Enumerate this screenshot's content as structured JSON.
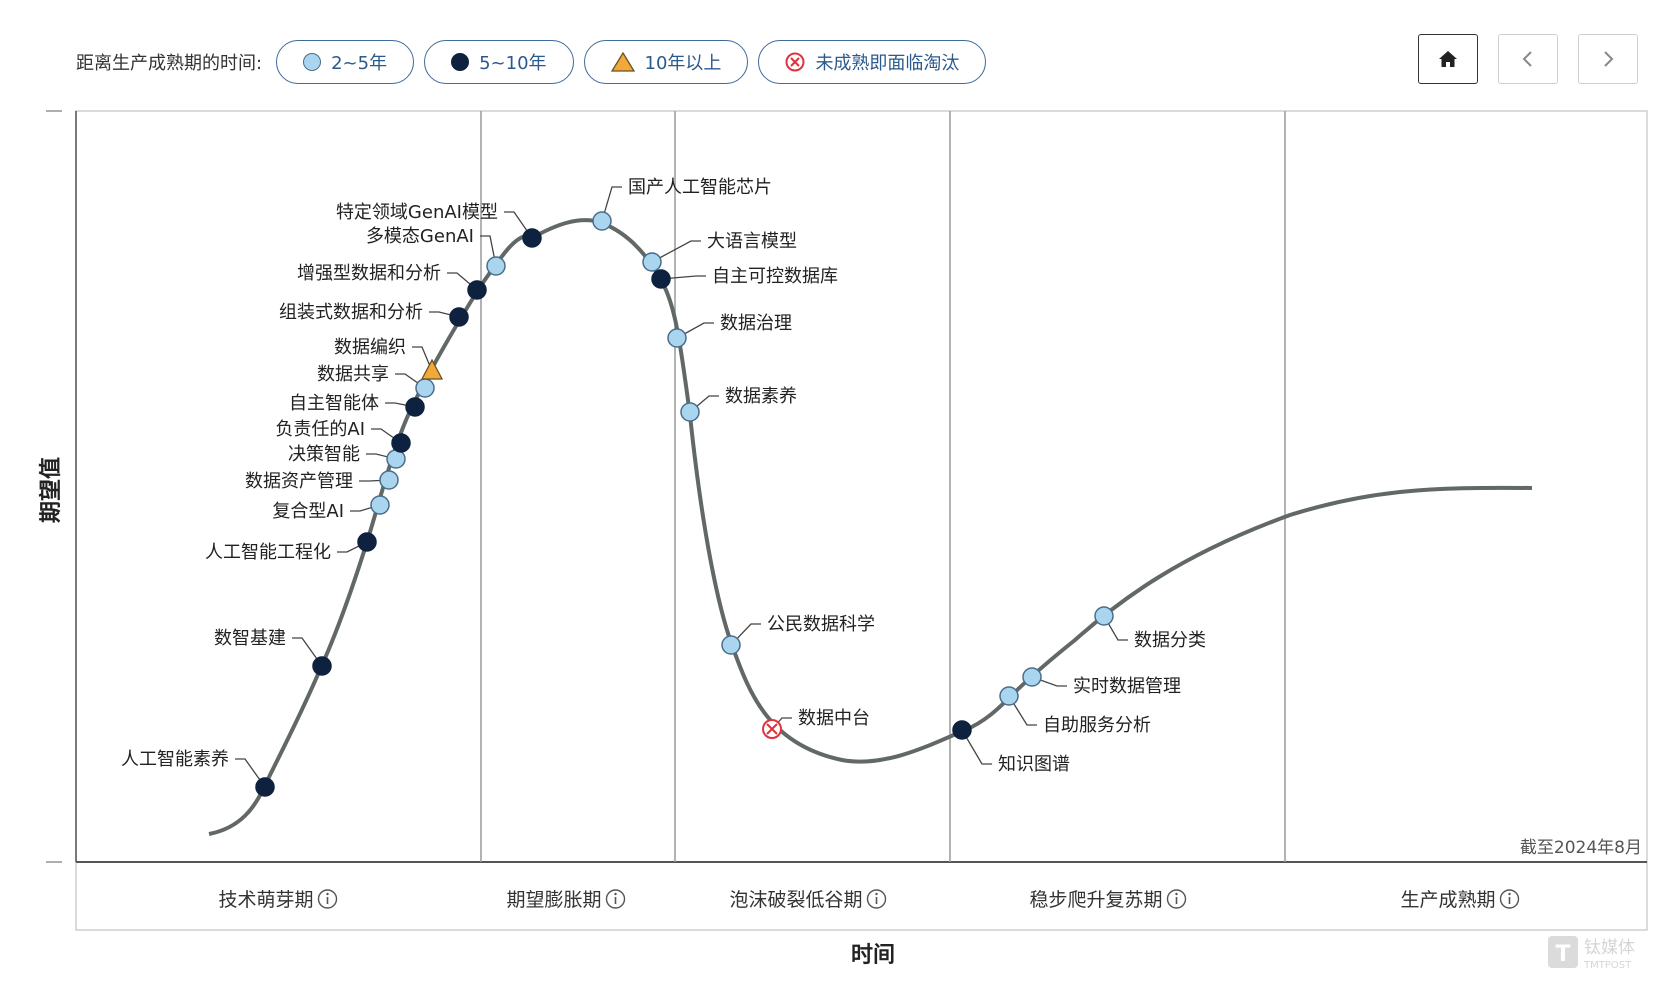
{
  "legend": {
    "title": "距离生产成熟期的时间:",
    "items": [
      {
        "label": "2~5年",
        "symbol": "light-circle"
      },
      {
        "label": "5~10年",
        "symbol": "dark-circle"
      },
      {
        "label": "10年以上",
        "symbol": "triangle"
      },
      {
        "label": "未成熟即面临淘汰",
        "symbol": "x-circle"
      }
    ]
  },
  "nav": {
    "home_icon": "home-icon",
    "prev_icon": "chevron-left-icon",
    "next_icon": "chevron-right-icon"
  },
  "colors": {
    "light": "#a9d6ee",
    "dark": "#0e2240",
    "triangle": "#f2a93b",
    "obsolete": "#e0323c",
    "curve": "#616865",
    "accent": "#3f6a9a"
  },
  "chart_data": {
    "type": "scatter",
    "ylabel": "期望值",
    "xlabel": "时间",
    "date_note": "截至2024年8月",
    "phases": [
      "技术萌芽期",
      "期望膨胀期",
      "泡沫破裂低谷期",
      "稳步爬升复苏期",
      "生产成熟期"
    ],
    "points": [
      {
        "label": "人工智能素养",
        "category": "5~10年"
      },
      {
        "label": "数智基建",
        "category": "5~10年"
      },
      {
        "label": "人工智能工程化",
        "category": "5~10年"
      },
      {
        "label": "复合型AI",
        "category": "2~5年"
      },
      {
        "label": "数据资产管理",
        "category": "2~5年"
      },
      {
        "label": "决策智能",
        "category": "2~5年"
      },
      {
        "label": "负责任的AI",
        "category": "5~10年"
      },
      {
        "label": "自主智能体",
        "category": "5~10年"
      },
      {
        "label": "数据共享",
        "category": "2~5年"
      },
      {
        "label": "数据编织",
        "category": "10年以上"
      },
      {
        "label": "组装式数据和分析",
        "category": "5~10年"
      },
      {
        "label": "增强型数据和分析",
        "category": "5~10年"
      },
      {
        "label": "多模态GenAI",
        "category": "2~5年"
      },
      {
        "label": "特定领域GenAI模型",
        "category": "5~10年"
      },
      {
        "label": "国产人工智能芯片",
        "category": "2~5年"
      },
      {
        "label": "大语言模型",
        "category": "2~5年"
      },
      {
        "label": "自主可控数据库",
        "category": "5~10年"
      },
      {
        "label": "数据治理",
        "category": "2~5年"
      },
      {
        "label": "数据素养",
        "category": "2~5年"
      },
      {
        "label": "公民数据科学",
        "category": "2~5年"
      },
      {
        "label": "数据中台",
        "category": "未成熟即面临淘汰"
      },
      {
        "label": "知识图谱",
        "category": "5~10年"
      },
      {
        "label": "自助服务分析",
        "category": "2~5年"
      },
      {
        "label": "实时数据管理",
        "category": "2~5年"
      },
      {
        "label": "数据分类",
        "category": "2~5年"
      }
    ]
  },
  "watermark": {
    "brand": "钛媒体",
    "sub": "TMTPOST"
  }
}
